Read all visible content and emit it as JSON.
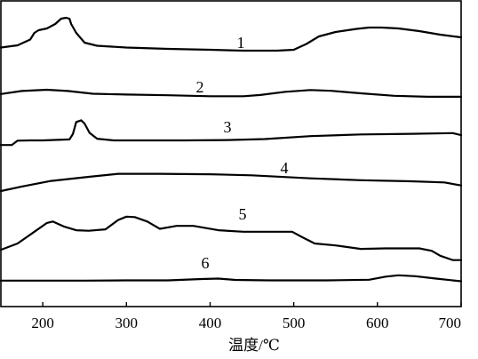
{
  "chart_data": {
    "type": "line",
    "title": "",
    "xlabel": "温度/℃",
    "ylabel": "",
    "xlim": [
      150,
      700
    ],
    "xticks": [
      200,
      300,
      400,
      500,
      600,
      700
    ],
    "grid": false,
    "series": [
      {
        "name": "1",
        "points": [
          [
            150,
            0.27
          ],
          [
            170,
            0.32
          ],
          [
            185,
            0.45
          ],
          [
            190,
            0.6
          ],
          [
            195,
            0.66
          ],
          [
            205,
            0.7
          ],
          [
            215,
            0.8
          ],
          [
            222,
            0.92
          ],
          [
            228,
            0.94
          ],
          [
            232,
            0.92
          ],
          [
            234,
            0.8
          ],
          [
            240,
            0.6
          ],
          [
            250,
            0.38
          ],
          [
            265,
            0.31
          ],
          [
            300,
            0.27
          ],
          [
            350,
            0.24
          ],
          [
            400,
            0.22
          ],
          [
            440,
            0.2
          ],
          [
            480,
            0.2
          ],
          [
            500,
            0.22
          ],
          [
            515,
            0.35
          ],
          [
            530,
            0.52
          ],
          [
            550,
            0.62
          ],
          [
            575,
            0.69
          ],
          [
            590,
            0.72
          ],
          [
            605,
            0.72
          ],
          [
            625,
            0.7
          ],
          [
            650,
            0.64
          ],
          [
            675,
            0.56
          ],
          [
            700,
            0.5
          ]
        ]
      },
      {
        "name": "2",
        "points": [
          [
            150,
            0.15
          ],
          [
            175,
            0.27
          ],
          [
            205,
            0.32
          ],
          [
            230,
            0.27
          ],
          [
            260,
            0.16
          ],
          [
            300,
            0.13
          ],
          [
            350,
            0.1
          ],
          [
            400,
            0.06
          ],
          [
            440,
            0.06
          ],
          [
            460,
            0.11
          ],
          [
            490,
            0.24
          ],
          [
            520,
            0.31
          ],
          [
            545,
            0.28
          ],
          [
            580,
            0.18
          ],
          [
            620,
            0.08
          ],
          [
            660,
            0.04
          ],
          [
            700,
            0.04
          ]
        ]
      },
      {
        "name": "3",
        "points": [
          [
            150,
            0.05
          ],
          [
            163,
            0.05
          ],
          [
            170,
            0.18
          ],
          [
            185,
            0.19
          ],
          [
            200,
            0.19
          ],
          [
            232,
            0.22
          ],
          [
            236,
            0.38
          ],
          [
            240,
            0.75
          ],
          [
            246,
            0.8
          ],
          [
            250,
            0.7
          ],
          [
            256,
            0.42
          ],
          [
            265,
            0.24
          ],
          [
            285,
            0.19
          ],
          [
            320,
            0.19
          ],
          [
            370,
            0.19
          ],
          [
            420,
            0.2
          ],
          [
            465,
            0.23
          ],
          [
            520,
            0.32
          ],
          [
            580,
            0.37
          ],
          [
            640,
            0.39
          ],
          [
            690,
            0.41
          ],
          [
            700,
            0.35
          ]
        ]
      },
      {
        "name": "4",
        "points": [
          [
            150,
            0.12
          ],
          [
            175,
            0.24
          ],
          [
            210,
            0.39
          ],
          [
            255,
            0.5
          ],
          [
            290,
            0.58
          ],
          [
            340,
            0.58
          ],
          [
            400,
            0.57
          ],
          [
            450,
            0.54
          ],
          [
            520,
            0.46
          ],
          [
            580,
            0.41
          ],
          [
            640,
            0.38
          ],
          [
            680,
            0.35
          ],
          [
            700,
            0.27
          ]
        ]
      },
      {
        "name": "5",
        "points": [
          [
            150,
            0.07
          ],
          [
            170,
            0.2
          ],
          [
            190,
            0.44
          ],
          [
            205,
            0.62
          ],
          [
            212,
            0.65
          ],
          [
            225,
            0.55
          ],
          [
            240,
            0.47
          ],
          [
            255,
            0.46
          ],
          [
            275,
            0.49
          ],
          [
            290,
            0.68
          ],
          [
            300,
            0.75
          ],
          [
            310,
            0.74
          ],
          [
            325,
            0.65
          ],
          [
            340,
            0.5
          ],
          [
            360,
            0.56
          ],
          [
            380,
            0.56
          ],
          [
            410,
            0.47
          ],
          [
            440,
            0.44
          ],
          [
            470,
            0.44
          ],
          [
            498,
            0.44
          ],
          [
            510,
            0.33
          ],
          [
            525,
            0.2
          ],
          [
            550,
            0.16
          ],
          [
            580,
            0.09
          ],
          [
            610,
            0.1
          ],
          [
            650,
            0.1
          ],
          [
            665,
            0.05
          ],
          [
            675,
            -0.05
          ],
          [
            690,
            -0.14
          ],
          [
            700,
            -0.14
          ]
        ]
      },
      {
        "name": "6",
        "points": [
          [
            150,
            0.09
          ],
          [
            200,
            0.09
          ],
          [
            250,
            0.09
          ],
          [
            300,
            0.1
          ],
          [
            350,
            0.1
          ],
          [
            390,
            0.16
          ],
          [
            410,
            0.18
          ],
          [
            430,
            0.12
          ],
          [
            470,
            0.1
          ],
          [
            500,
            0.1
          ],
          [
            540,
            0.1
          ],
          [
            590,
            0.13
          ],
          [
            610,
            0.27
          ],
          [
            625,
            0.33
          ],
          [
            645,
            0.29
          ],
          [
            670,
            0.18
          ],
          [
            700,
            0.06
          ]
        ]
      }
    ],
    "curve_labels": [
      "1",
      "2",
      "3",
      "4",
      "5",
      "6"
    ]
  }
}
